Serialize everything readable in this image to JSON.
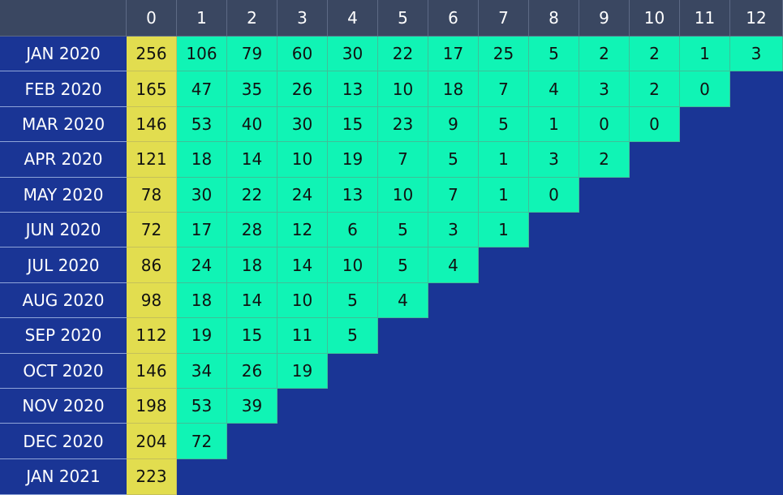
{
  "chart_data": {
    "type": "table",
    "columns": [
      "0",
      "1",
      "2",
      "3",
      "4",
      "5",
      "6",
      "7",
      "8",
      "9",
      "10",
      "11",
      "12"
    ],
    "rows": [
      {
        "label": "JAN 2020",
        "values": [
          256,
          106,
          79,
          60,
          30,
          22,
          17,
          25,
          5,
          2,
          2,
          1,
          3
        ]
      },
      {
        "label": "FEB 2020",
        "values": [
          165,
          47,
          35,
          26,
          13,
          10,
          18,
          7,
          4,
          3,
          2,
          0
        ]
      },
      {
        "label": "MAR 2020",
        "values": [
          146,
          53,
          40,
          30,
          15,
          23,
          9,
          5,
          1,
          0,
          0
        ]
      },
      {
        "label": "APR 2020",
        "values": [
          121,
          18,
          14,
          10,
          19,
          7,
          5,
          1,
          3,
          2
        ]
      },
      {
        "label": "MAY 2020",
        "values": [
          78,
          30,
          22,
          24,
          13,
          10,
          7,
          1,
          0
        ]
      },
      {
        "label": "JUN 2020",
        "values": [
          72,
          17,
          28,
          12,
          6,
          5,
          3,
          1
        ]
      },
      {
        "label": "JUL 2020",
        "values": [
          86,
          24,
          18,
          14,
          10,
          5,
          4
        ]
      },
      {
        "label": "AUG 2020",
        "values": [
          98,
          18,
          14,
          10,
          5,
          4
        ]
      },
      {
        "label": "SEP 2020",
        "values": [
          112,
          19,
          15,
          11,
          5
        ]
      },
      {
        "label": "OCT 2020",
        "values": [
          146,
          34,
          26,
          19
        ]
      },
      {
        "label": "NOV 2020",
        "values": [
          198,
          53,
          39
        ]
      },
      {
        "label": "DEC 2020",
        "values": [
          204,
          72
        ]
      },
      {
        "label": "JAN 2021",
        "values": [
          223
        ]
      }
    ]
  },
  "colors": {
    "header_bg": "#3a4761",
    "background": "#1a3595",
    "first_column": "#e2dd4f",
    "value_cell": "#10f4b5",
    "header_text": "#ffffff",
    "cell_text": "#111111"
  }
}
